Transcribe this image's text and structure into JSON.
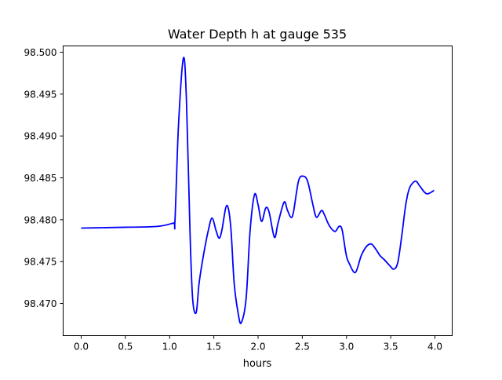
{
  "chart_data": {
    "type": "line",
    "title": "Water Depth h at gauge 535",
    "xlabel": "hours",
    "ylabel": "",
    "xlim": [
      -0.204,
      4.195
    ],
    "ylim": [
      98.46616,
      98.50075
    ],
    "xticks": [
      0.0,
      0.5,
      1.0,
      1.5,
      2.0,
      2.5,
      3.0,
      3.5,
      4.0
    ],
    "xtick_labels": [
      "0.0",
      "0.5",
      "1.0",
      "1.5",
      "2.0",
      "2.5",
      "3.0",
      "3.5",
      "4.0"
    ],
    "yticks": [
      98.47,
      98.475,
      98.48,
      98.485,
      98.49,
      98.495,
      98.5
    ],
    "ytick_labels": [
      "98.470",
      "98.475",
      "98.480",
      "98.485",
      "98.490",
      "98.495",
      "98.500"
    ],
    "grid": false,
    "series": [
      {
        "name": "h",
        "color": "#0000ff",
        "x": [
          0.0,
          0.5,
          0.86,
          1.04,
          1.06,
          1.1,
          1.156,
          1.19,
          1.23,
          1.26,
          1.3,
          1.333,
          1.38,
          1.437,
          1.48,
          1.525,
          1.56,
          1.59,
          1.645,
          1.69,
          1.73,
          1.777,
          1.81,
          1.865,
          1.91,
          1.96,
          2.0,
          2.04,
          2.087,
          2.125,
          2.185,
          2.226,
          2.294,
          2.33,
          2.37,
          2.4,
          2.457,
          2.507,
          2.56,
          2.62,
          2.66,
          2.717,
          2.75,
          2.805,
          2.87,
          2.915,
          2.95,
          2.995,
          3.03,
          3.1,
          3.166,
          3.225,
          3.28,
          3.33,
          3.38,
          3.43,
          3.49,
          3.536,
          3.58,
          3.625,
          3.67,
          3.713,
          3.78,
          3.83,
          3.905,
          3.99
        ],
        "y": [
          98.479,
          98.4791,
          98.4792,
          98.4796,
          98.4798,
          98.4912,
          98.4993,
          98.4943,
          98.4787,
          98.4706,
          98.4689,
          98.4724,
          98.4756,
          98.4787,
          98.4802,
          98.4787,
          98.4778,
          98.4787,
          98.4817,
          98.4793,
          98.4724,
          98.4687,
          98.4677,
          98.4706,
          98.4787,
          98.483,
          98.4818,
          98.4798,
          98.4814,
          98.4809,
          98.4779,
          98.4796,
          98.4821,
          98.4812,
          98.4803,
          98.4809,
          98.4846,
          98.4852,
          98.4846,
          98.4818,
          98.4803,
          98.4811,
          98.4806,
          98.4793,
          98.4786,
          98.4792,
          98.4788,
          98.4759,
          98.4748,
          98.4737,
          98.4757,
          98.4768,
          98.4771,
          98.4765,
          98.4757,
          98.4752,
          98.4745,
          98.4741,
          98.4749,
          98.4781,
          98.4818,
          98.4838,
          98.4846,
          98.484,
          98.4831,
          98.4835
        ]
      }
    ]
  }
}
